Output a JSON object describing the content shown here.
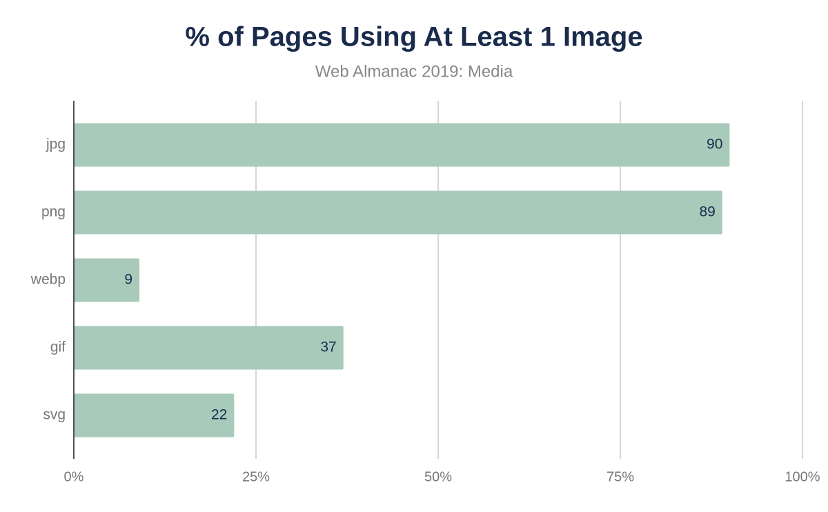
{
  "chart_data": {
    "type": "hbar",
    "title": "% of Pages Using At Least 1 Image",
    "subtitle": "Web Almanac 2019: Media",
    "categories": [
      "jpg",
      "png",
      "webp",
      "gif",
      "svg"
    ],
    "values": [
      90,
      89,
      9,
      37,
      22
    ],
    "color": "#a8cabb",
    "xlim": [
      0,
      100
    ],
    "xticks": [
      {
        "value": 0,
        "label": "0%"
      },
      {
        "value": 25,
        "label": "25%"
      },
      {
        "value": 50,
        "label": "50%"
      },
      {
        "value": 75,
        "label": "75%"
      },
      {
        "value": 100,
        "label": "100%"
      }
    ],
    "grid": true
  }
}
